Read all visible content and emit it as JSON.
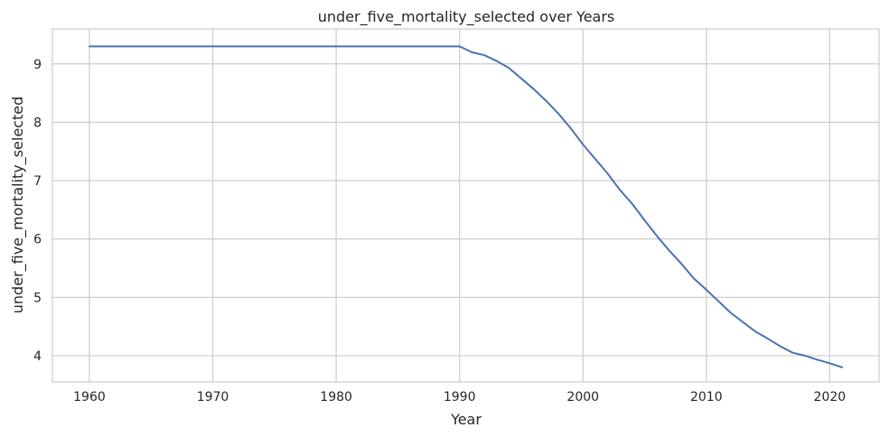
{
  "chart_data": {
    "type": "line",
    "title": "under_five_mortality_selected over Years",
    "xlabel": "Year",
    "ylabel": "under_five_mortality_selected",
    "xlim": [
      1957,
      2024
    ],
    "ylim": [
      3.55,
      9.6
    ],
    "xticks": [
      1960,
      1970,
      1980,
      1990,
      2000,
      2010,
      2020
    ],
    "yticks": [
      4,
      5,
      6,
      7,
      8,
      9
    ],
    "grid": true,
    "legend": "none",
    "colors": {
      "line": "#4c72b0",
      "grid": "#cccccc",
      "spine": "#cccccc",
      "text": "#262626"
    },
    "series": [
      {
        "x": [
          1960,
          1961,
          1962,
          1963,
          1964,
          1965,
          1966,
          1967,
          1968,
          1969,
          1970,
          1971,
          1972,
          1973,
          1974,
          1975,
          1976,
          1977,
          1978,
          1979,
          1980,
          1981,
          1982,
          1983,
          1984,
          1985,
          1986,
          1987,
          1988,
          1989,
          1990,
          1991,
          1992,
          1993,
          1994,
          1995,
          1996,
          1997,
          1998,
          1999,
          2000,
          2001,
          2002,
          2003,
          2004,
          2005,
          2006,
          2007,
          2008,
          2009,
          2010,
          2011,
          2012,
          2013,
          2014,
          2015,
          2016,
          2017,
          2018,
          2019,
          2020,
          2021
        ],
        "values": [
          9.3,
          9.3,
          9.3,
          9.3,
          9.3,
          9.3,
          9.3,
          9.3,
          9.3,
          9.3,
          9.3,
          9.3,
          9.3,
          9.3,
          9.3,
          9.3,
          9.3,
          9.3,
          9.3,
          9.3,
          9.3,
          9.3,
          9.3,
          9.3,
          9.3,
          9.3,
          9.3,
          9.3,
          9.3,
          9.3,
          9.3,
          9.2,
          9.15,
          9.05,
          8.93,
          8.75,
          8.57,
          8.37,
          8.15,
          7.9,
          7.62,
          7.37,
          7.12,
          6.84,
          6.6,
          6.32,
          6.05,
          5.8,
          5.57,
          5.32,
          5.13,
          4.93,
          4.73,
          4.57,
          4.41,
          4.29,
          4.16,
          4.05,
          4.0,
          3.93,
          3.87,
          3.8
        ]
      }
    ]
  }
}
